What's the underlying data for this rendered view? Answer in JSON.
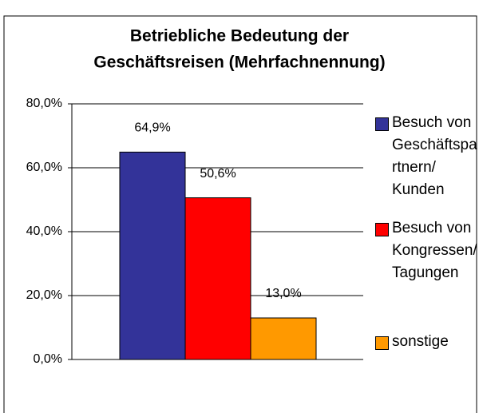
{
  "chart_data": {
    "type": "bar",
    "title": [
      "Betriebliche Bedeutung der",
      "Geschäftsreisen (Mehrfachnennung)"
    ],
    "categories": [
      "Besuch von Geschäftspartnern/ Kunden",
      "Besuch von Kongressen/ Tagungen",
      "sonstige"
    ],
    "values": [
      64.9,
      50.6,
      13.0
    ],
    "value_labels": [
      "64,9%",
      "50,6%",
      "13,0%"
    ],
    "colors": [
      "#333399",
      "#ff0000",
      "#ff9900"
    ],
    "ylim": [
      0,
      80
    ],
    "yticks": [
      {
        "value": 0,
        "label": "0,0%"
      },
      {
        "value": 20,
        "label": "20,0%"
      },
      {
        "value": 40,
        "label": "40,0%"
      },
      {
        "value": 60,
        "label": "60,0%"
      },
      {
        "value": 80,
        "label": "80,0%"
      }
    ],
    "grid": true,
    "legend": "right"
  }
}
